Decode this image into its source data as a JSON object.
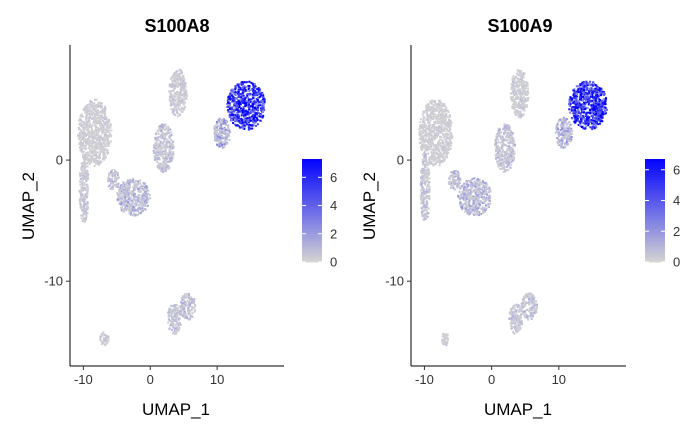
{
  "chart_data": [
    {
      "type": "scatter",
      "title": "S100A8",
      "xlabel": "UMAP_1",
      "ylabel": "UMAP_2",
      "xlim": [
        -12,
        20
      ],
      "ylim": [
        -17,
        9.5
      ],
      "xticks": [
        -10,
        0,
        10
      ],
      "yticks": [
        0,
        -10
      ],
      "x_tick_labels": [
        "-10",
        "0",
        "10"
      ],
      "y_tick_labels": [
        "0",
        "-10"
      ],
      "grid": false,
      "legend": {
        "placement": "right",
        "min": 0,
        "max": 7.3,
        "ticks": [
          0,
          2,
          4,
          6
        ],
        "tick_labels": [
          "0",
          "2",
          "4",
          "6"
        ],
        "color_low": "#d3d3d3",
        "color_high": "#0000ff"
      },
      "clusters": [
        {
          "name": "upper-left",
          "x": [
            -10.8,
            -5.8
          ],
          "y": [
            -0.5,
            5.0
          ],
          "expr": 0.35
        },
        {
          "name": "left-vertical",
          "x": [
            -10.6,
            -9.2
          ],
          "y": [
            -5.2,
            0.5
          ],
          "expr": 0.6
        },
        {
          "name": "mid-bottom-arc",
          "x": [
            -5.0,
            0.0
          ],
          "y": [
            -4.6,
            -1.5
          ],
          "expr": 1.4
        },
        {
          "name": "mid-left-blob",
          "x": [
            -6.4,
            -4.6
          ],
          "y": [
            -2.5,
            -0.8
          ],
          "expr": 1.0
        },
        {
          "name": "center-arc",
          "x": [
            0.5,
            3.5
          ],
          "y": [
            -1.0,
            3.0
          ],
          "expr": 0.9
        },
        {
          "name": "top-center",
          "x": [
            2.8,
            5.5
          ],
          "y": [
            3.5,
            7.5
          ],
          "expr": 0.5
        },
        {
          "name": "upper-right-hot",
          "x": [
            11.5,
            17.2
          ],
          "y": [
            2.5,
            6.5
          ],
          "expr": 5.8
        },
        {
          "name": "right-tail",
          "x": [
            9.5,
            12.0
          ],
          "y": [
            1.0,
            3.5
          ],
          "expr": 1.8
        },
        {
          "name": "bottom-center",
          "x": [
            2.6,
            4.6
          ],
          "y": [
            -14.4,
            -11.8
          ],
          "expr": 0.8
        },
        {
          "name": "bottom-right-stalk",
          "x": [
            4.4,
            6.8
          ],
          "y": [
            -13.2,
            -11.0
          ],
          "expr": 1.0
        },
        {
          "name": "bottom-left",
          "x": [
            -7.5,
            -6.2
          ],
          "y": [
            -15.3,
            -14.2
          ],
          "expr": 0.5
        }
      ]
    },
    {
      "type": "scatter",
      "title": "S100A9",
      "xlabel": "UMAP_1",
      "ylabel": "UMAP_2",
      "xlim": [
        -12,
        20
      ],
      "ylim": [
        -17,
        9.5
      ],
      "xticks": [
        -10,
        0,
        10
      ],
      "yticks": [
        0,
        -10
      ],
      "x_tick_labels": [
        "-10",
        "0",
        "10"
      ],
      "y_tick_labels": [
        "0",
        "-10"
      ],
      "grid": false,
      "legend": {
        "placement": "right",
        "min": 0,
        "max": 6.7,
        "ticks": [
          0,
          2,
          4,
          6
        ],
        "tick_labels": [
          "0",
          "2",
          "4",
          "6"
        ],
        "color_low": "#d3d3d3",
        "color_high": "#0000ff"
      },
      "clusters": [
        {
          "name": "upper-left",
          "x": [
            -10.8,
            -5.8
          ],
          "y": [
            -0.5,
            5.0
          ],
          "expr": 0.3
        },
        {
          "name": "left-vertical",
          "x": [
            -10.6,
            -9.2
          ],
          "y": [
            -5.2,
            0.5
          ],
          "expr": 0.7
        },
        {
          "name": "mid-bottom-arc",
          "x": [
            -5.0,
            0.0
          ],
          "y": [
            -4.6,
            -1.5
          ],
          "expr": 1.2
        },
        {
          "name": "mid-left-blob",
          "x": [
            -6.4,
            -4.6
          ],
          "y": [
            -2.5,
            -0.8
          ],
          "expr": 1.0
        },
        {
          "name": "center-arc",
          "x": [
            0.5,
            3.5
          ],
          "y": [
            -1.0,
            3.0
          ],
          "expr": 0.8
        },
        {
          "name": "top-center",
          "x": [
            2.8,
            5.5
          ],
          "y": [
            3.5,
            7.5
          ],
          "expr": 0.4
        },
        {
          "name": "upper-right-hot",
          "x": [
            11.5,
            17.2
          ],
          "y": [
            2.5,
            6.5
          ],
          "expr": 5.4
        },
        {
          "name": "right-tail",
          "x": [
            9.5,
            12.0
          ],
          "y": [
            1.0,
            3.5
          ],
          "expr": 1.6
        },
        {
          "name": "bottom-center",
          "x": [
            2.6,
            4.6
          ],
          "y": [
            -14.4,
            -11.8
          ],
          "expr": 0.7
        },
        {
          "name": "bottom-right-stalk",
          "x": [
            4.4,
            6.8
          ],
          "y": [
            -13.2,
            -11.0
          ],
          "expr": 0.9
        },
        {
          "name": "bottom-left",
          "x": [
            -7.5,
            -6.2
          ],
          "y": [
            -15.3,
            -14.2
          ],
          "expr": 0.4
        }
      ]
    }
  ]
}
